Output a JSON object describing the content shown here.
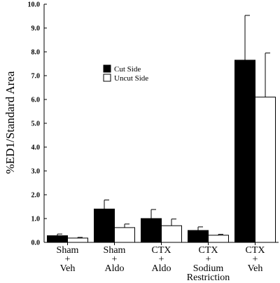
{
  "chart_data": {
    "type": "bar",
    "ylabel": "%ED1/Standard Area",
    "xlabel": "",
    "ylim": [
      0,
      10
    ],
    "yticks": [
      "0.0",
      "1.0",
      "2.0",
      "3.0",
      "4.0",
      "5.0",
      "6.0",
      "7.0",
      "8.0",
      "9.0",
      "10.0"
    ],
    "categories": [
      [
        "Sham",
        "+",
        "Veh"
      ],
      [
        "Sham",
        "+",
        "Aldo"
      ],
      [
        "CTX",
        "+",
        "Aldo"
      ],
      [
        "CTX",
        "+",
        "Sodium",
        "Restriction"
      ],
      [
        "CTX",
        "+",
        "Veh"
      ]
    ],
    "series": [
      {
        "name": "Cut Side",
        "color": "#000000",
        "values": [
          0.28,
          1.4,
          1.0,
          0.5,
          7.65
        ],
        "errors": [
          0.07,
          0.38,
          0.38,
          0.15,
          1.88
        ]
      },
      {
        "name": "Uncut Side",
        "color": "#ffffff",
        "values": [
          0.18,
          0.62,
          0.7,
          0.3,
          6.1
        ],
        "errors": [
          0.03,
          0.15,
          0.28,
          0.04,
          1.85
        ]
      }
    ],
    "legend_position": "upper-left",
    "grid": false
  }
}
